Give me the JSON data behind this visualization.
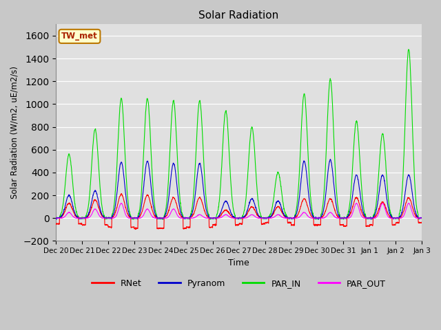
{
  "title": "Solar Radiation",
  "ylabel": "Solar Radiation (W/m2, uE/m2/s)",
  "xlabel": "Time",
  "ylim": [
    -200,
    1700
  ],
  "yticks": [
    -200,
    0,
    200,
    400,
    600,
    800,
    1000,
    1200,
    1400,
    1600
  ],
  "fig_bg_color": "#c8c8c8",
  "plot_bg_color": "#e0e0e0",
  "station_label": "TW_met",
  "legend_entries": [
    "RNet",
    "Pyranom",
    "PAR_IN",
    "PAR_OUT"
  ],
  "line_colors": [
    "#ff0000",
    "#0000cc",
    "#00dd00",
    "#ff00ff"
  ],
  "num_days": 14,
  "n_points_per_day": 144,
  "par_in_peaks": [
    560,
    780,
    1050,
    1050,
    1030,
    1030,
    940,
    800,
    400,
    1090,
    1220,
    850,
    740,
    1480
  ],
  "pyr_peaks": [
    200,
    240,
    490,
    500,
    480,
    480,
    150,
    170,
    150,
    500,
    510,
    380,
    380,
    380
  ],
  "rnet_peaks": [
    130,
    160,
    210,
    200,
    180,
    180,
    70,
    100,
    100,
    170,
    170,
    180,
    140,
    180
  ],
  "par_out_peaks": [
    50,
    80,
    130,
    80,
    80,
    30,
    30,
    30,
    30,
    50,
    50,
    130,
    130,
    130
  ],
  "rnet_night": [
    -50,
    -60,
    -80,
    -90,
    -90,
    -80,
    -60,
    -50,
    -40,
    -60,
    -60,
    -70,
    -60,
    -40
  ],
  "tick_labels": [
    "Dec 20",
    "Dec 21",
    "Dec 22",
    "Dec 23",
    "Dec 24",
    "Dec 25",
    "Dec 26",
    "Dec 27",
    "Dec 28",
    "Dec 29",
    "Dec 30",
    "Dec 31",
    "Jan 1",
    "Jan 2",
    "Jan 3"
  ]
}
